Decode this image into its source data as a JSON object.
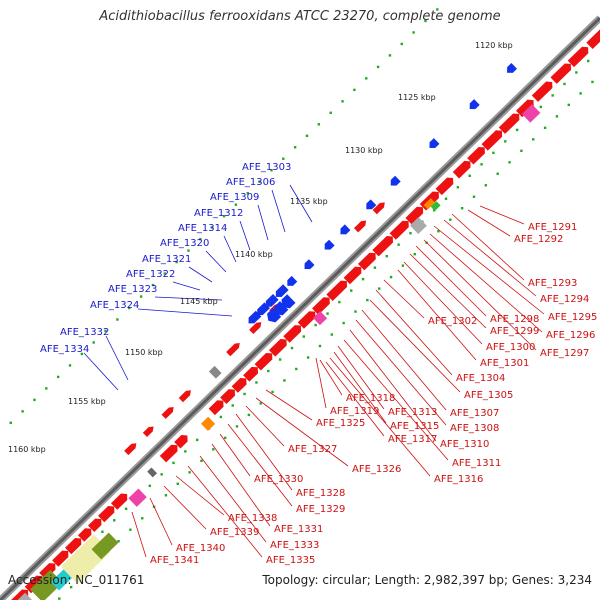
{
  "map": {
    "title": "Acidithiobacillus ferrooxidans ATCC 23270, complete genome",
    "accession": "Accession: NC_011761",
    "summary": "Topology: circular; Length: 2,982,397 bp; Genes: 3,234"
  },
  "kbp_ticks": [
    "1120 kbp",
    "1125 kbp",
    "1130 kbp",
    "1135 kbp",
    "1140 kbp",
    "1145 kbp",
    "1150 kbp",
    "1155 kbp",
    "1160 kbp"
  ],
  "minus_strand_labels": [
    "AFE_1303",
    "AFE_1306",
    "AFE_1309",
    "AFE_1312",
    "AFE_1314",
    "AFE_1320",
    "AFE_1321",
    "AFE_1322",
    "AFE_1323",
    "AFE_1324",
    "AFE_1332",
    "AFE_1334"
  ],
  "plus_strand_labels": [
    "AFE_1291",
    "AFE_1292",
    "AFE_1293",
    "AFE_1294",
    "AFE_1295",
    "AFE_1296",
    "AFE_1297",
    "AFE_1298",
    "AFE_1299",
    "AFE_1300",
    "AFE_1301",
    "AFE_1302",
    "AFE_1304",
    "AFE_1305",
    "AFE_1307",
    "AFE_1308",
    "AFE_1310",
    "AFE_1311",
    "AFE_1313",
    "AFE_1315",
    "AFE_1316",
    "AFE_1317",
    "AFE_1318",
    "AFE_1319",
    "AFE_1325",
    "AFE_1326",
    "AFE_1327",
    "AFE_1328",
    "AFE_1329",
    "AFE_1330",
    "AFE_1331",
    "AFE_1333",
    "AFE_1335",
    "AFE_1338",
    "AFE_1339",
    "AFE_1340",
    "AFE_1341"
  ],
  "colors": {
    "forward_gene": "#ee1111",
    "reverse_gene": "#1133ee",
    "backbone": "#777777",
    "gc_dots": "#22aa22",
    "minus_label": "#1a1acc",
    "plus_label": "#cc1111",
    "rrna_yellow": "#eeeeaa",
    "olive": "#779922",
    "pink": "#ee44aa",
    "orange": "#ff8800",
    "grey_box": "#aaaaaa",
    "cyan": "#22cccc",
    "navy": "#111188"
  }
}
